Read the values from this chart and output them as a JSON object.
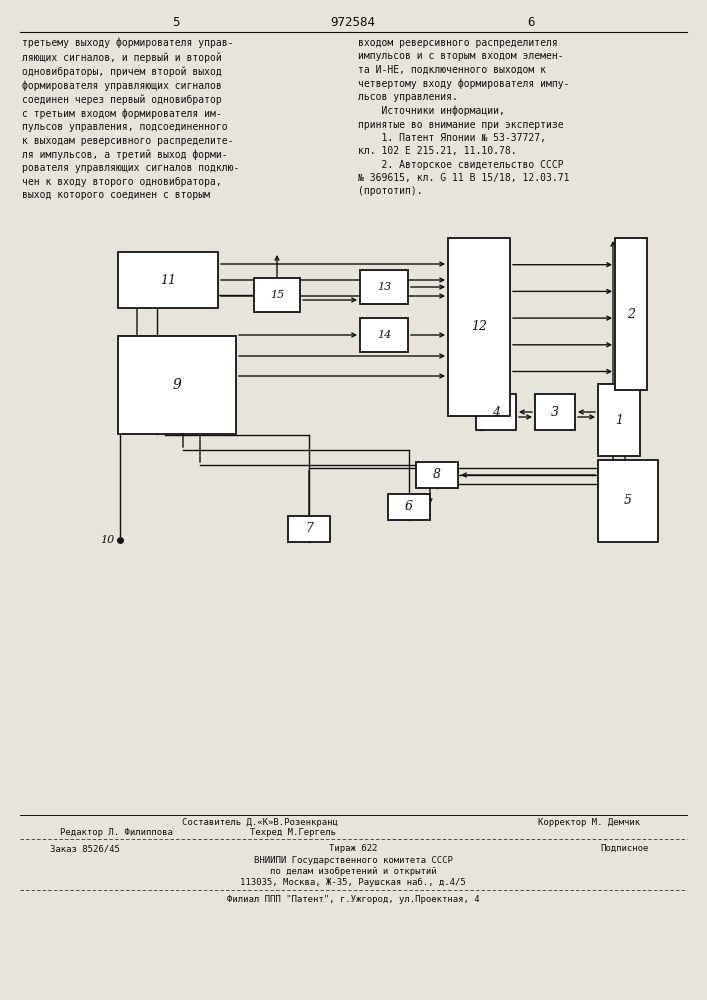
{
  "bg_color": "#e8e4dc",
  "line_color": "#111111",
  "title_number": "972584",
  "page_left": "5",
  "page_right": "6",
  "text_left": "третьему выходу формирователя управ-\nляющих сигналов, и первый и второй\nодновибраторы, причем второй выход\nформирователя управляющих сигналов\nсоединен через первый одновибратор\nс третьим входом формирователя им-\nпульсов управления, подсоединенного\nк выходам реверсивного распределите-\nля импульсов, а третий выход форми-\nрователя управляющих сигналов подклю-\nчен к входу второго одновибратора,\nвыход которого соединен с вторым",
  "text_right": "входом реверсивного распределителя\nимпульсов и с вторым входом элемен-\nта И-НЕ, подключенного выходом к\nчетвертому входу формирователя импу-\nльсов управления.\n    Источники информации,\nпринятые во внимание при экспертизе\n    1. Патент Японии № 53-37727,\nкл. 102 Е 215.21, 11.10.78.\n    2. Авторское свидетельство СССР\n№ 369615, кл. G 11 В 15/18, 12.03.71\n(прототип).",
  "footer_line1_left": "Редактор Л. Филиппова",
  "footer_line1_center1": "Составитель Д.«К»В.Розенкранц",
  "footer_line1_center2": "Техред М.Гергель",
  "footer_line1_right": "Корректор М. Демчик",
  "footer_line2_left": "Заказ 8526/45",
  "footer_line2_center": "Тираж 622",
  "footer_line2_right": "Подписное",
  "footer_line3": "ВНИИПИ Государственного комитета СССР",
  "footer_line4": "по делам изобретений и открытий",
  "footer_line5": "113035, Москва, Ж-35, Раушская наб., д.4/5",
  "footer_line6": "Филиал ППП \"Патент\", г.Ужгород, ул.Проектная, 4",
  "boxes": {
    "1": [
      598,
      384,
      42,
      72
    ],
    "2": [
      615,
      238,
      32,
      152
    ],
    "3": [
      535,
      394,
      40,
      36
    ],
    "4": [
      476,
      394,
      40,
      36
    ],
    "5": [
      598,
      460,
      60,
      82
    ],
    "6": [
      388,
      494,
      42,
      26
    ],
    "7": [
      288,
      516,
      42,
      26
    ],
    "8": [
      416,
      462,
      42,
      26
    ],
    "9": [
      118,
      336,
      118,
      98
    ],
    "11": [
      118,
      252,
      100,
      56
    ],
    "12": [
      448,
      238,
      62,
      178
    ],
    "13": [
      360,
      270,
      48,
      34
    ],
    "14": [
      360,
      318,
      48,
      34
    ],
    "15": [
      254,
      278,
      46,
      34
    ]
  },
  "label10": [
    120,
    540
  ]
}
